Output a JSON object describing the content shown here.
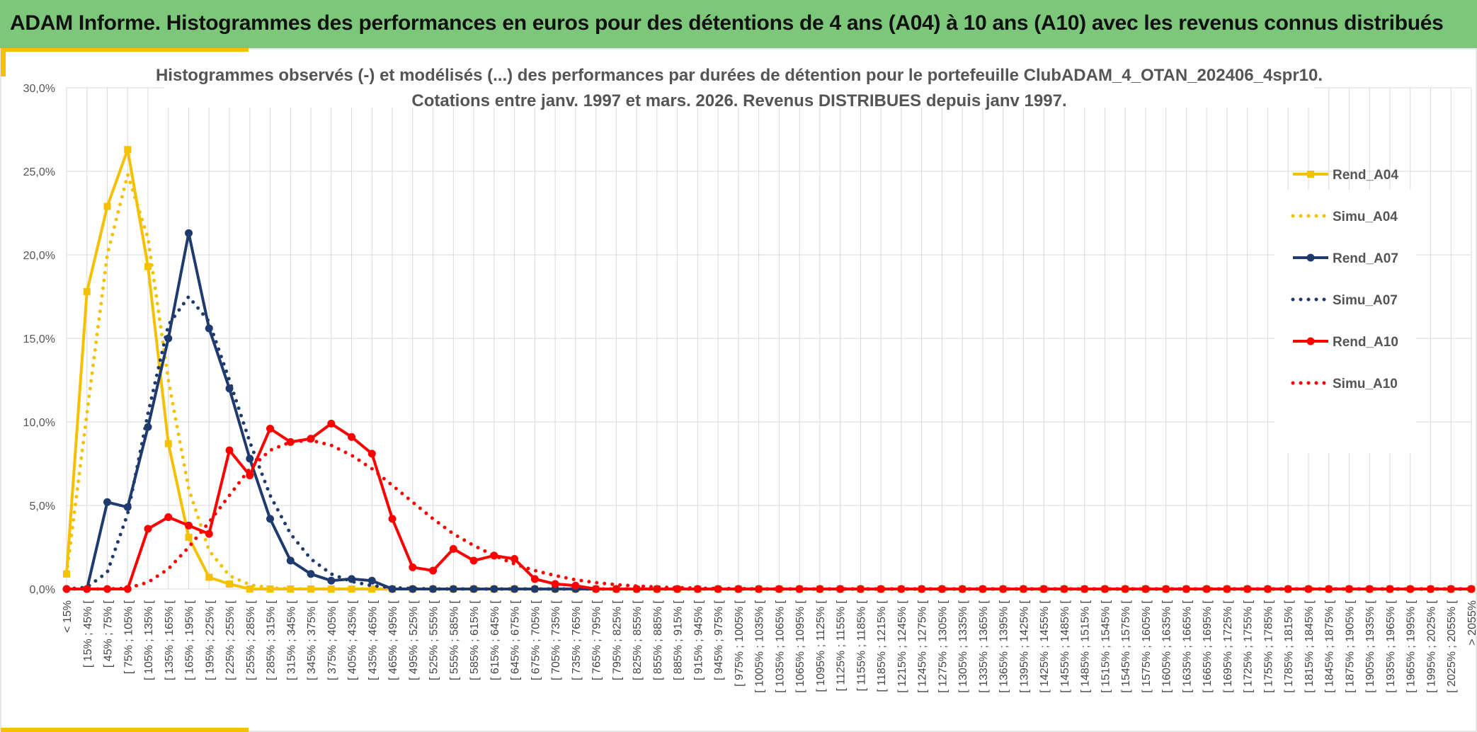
{
  "header": {
    "title": "ADAM Informe. Histogrammes des performances en euros pour des détentions de 4 ans (A04) à 10 ans (A10) avec les revenus connus distribués"
  },
  "chart_data": {
    "type": "line",
    "title_line1": "Histogrammes observés (-) et modélisés (...) des performances par durées de détention pour le portefeuille ClubADAM_4_OTAN_202406_4spr10.",
    "title_line2": "Cotations entre janv. 1997 et mars. 2026. Revenus DISTRIBUES depuis janv 1997.",
    "ylim": [
      0,
      30
    ],
    "yticks": [
      "0,0%",
      "5,0%",
      "10,0%",
      "15,0%",
      "20,0%",
      "25,0%",
      "30,0%"
    ],
    "categories": [
      "< 15%",
      "[ 15% ; 45% [",
      "[ 45% ; 75% [",
      "[ 75% ; 105% [",
      "[ 105% ; 135% [",
      "[ 135% ; 165% [",
      "[ 165% ; 195% [",
      "[ 195% ; 225% [",
      "[ 225% ; 255% [",
      "[ 255% ; 285% [",
      "[ 285% ; 315% [",
      "[ 315% ; 345% [",
      "[ 345% ; 375% [",
      "[ 375% ; 405% [",
      "[ 405% ; 435% [",
      "[ 435% ; 465% [",
      "[ 465% ; 495% [",
      "[ 495% ; 525% [",
      "[ 525% ; 555% [",
      "[ 555% ; 585% [",
      "[ 585% ; 615% [",
      "[ 615% ; 645% [",
      "[ 645% ; 675% [",
      "[ 675% ; 705% [",
      "[ 705% ; 735% [",
      "[ 735% ; 765% [",
      "[ 765% ; 795% [",
      "[ 795% ; 825% [",
      "[ 825% ; 855% [",
      "[ 855% ; 885% [",
      "[ 885% ; 915% [",
      "[ 915% ; 945% [",
      "[ 945% ; 975% [",
      "[ 975% ; 1005% [",
      "[ 1005% ; 1035% [",
      "[ 1035% ; 1065% [",
      "[ 1065% ; 1095% [",
      "[ 1095% ; 1125% [",
      "[ 1125% ; 1155% [",
      "[ 1155% ; 1185% [",
      "[ 1185% ; 1215% [",
      "[ 1215% ; 1245% [",
      "[ 1245% ; 1275% [",
      "[ 1275% ; 1305% [",
      "[ 1305% ; 1335% [",
      "[ 1335% ; 1365% [",
      "[ 1365% ; 1395% [",
      "[ 1395% ; 1425% [",
      "[ 1425% ; 1455% [",
      "[ 1455% ; 1485% [",
      "[ 1485% ; 1515% [",
      "[ 1515% ; 1545% [",
      "[ 1545% ; 1575% [",
      "[ 1575% ; 1605% [",
      "[ 1605% ; 1635% [",
      "[ 1635% ; 1665% [",
      "[ 1665% ; 1695% [",
      "[ 1695% ; 1725% [",
      "[ 1725% ; 1755% [",
      "[ 1755% ; 1785% [",
      "[ 1785% ; 1815% [",
      "[ 1815% ; 1845% [",
      "[ 1845% ; 1875% [",
      "[ 1875% ; 1905% [",
      "[ 1905% ; 1935% [",
      "[ 1935% ; 1965% [",
      "[ 1965% ; 1995% [",
      "[ 1995% ; 2025% [",
      "[ 2025% ; 2055% [",
      "> 2055%"
    ],
    "series": [
      {
        "name": "Rend_A04",
        "style": "solid",
        "marker": "square",
        "color": "#f5c000",
        "values": [
          0.9,
          17.8,
          22.9,
          26.3,
          19.3,
          8.7,
          3.1,
          0.7,
          0.3,
          0,
          0,
          0,
          0,
          0,
          0,
          0,
          0,
          0,
          0,
          0,
          0,
          0,
          0,
          0,
          0,
          0,
          0,
          0,
          0,
          0,
          0,
          0,
          0,
          0,
          0,
          0,
          0,
          0,
          0,
          0,
          0,
          0,
          0,
          0,
          0,
          0,
          0,
          0,
          0,
          0,
          0,
          0,
          0,
          0,
          0,
          0,
          0,
          0,
          0,
          0,
          0,
          0,
          0,
          0,
          0,
          0,
          0,
          0,
          0,
          0
        ]
      },
      {
        "name": "Simu_A04",
        "style": "dotted",
        "marker": "none",
        "color": "#f5c000",
        "values": [
          0.9,
          10.5,
          20.0,
          24.8,
          21.0,
          12.5,
          6.0,
          2.3,
          0.8,
          0.25,
          0.06,
          0.02,
          0,
          0,
          0,
          0,
          0,
          0,
          0,
          0,
          0,
          0,
          0,
          0,
          0,
          0,
          0,
          0,
          0,
          0,
          0,
          0,
          0,
          0,
          0,
          0,
          0,
          0,
          0,
          0,
          0,
          0,
          0,
          0,
          0,
          0,
          0,
          0,
          0,
          0,
          0,
          0,
          0,
          0,
          0,
          0,
          0,
          0,
          0,
          0,
          0,
          0,
          0,
          0,
          0,
          0,
          0,
          0,
          0,
          0
        ]
      },
      {
        "name": "Rend_A07",
        "style": "solid",
        "marker": "circle",
        "color": "#1f3b6e",
        "values": [
          0,
          0,
          5.2,
          4.9,
          9.7,
          15.0,
          21.3,
          15.6,
          12.0,
          7.8,
          4.2,
          1.7,
          0.9,
          0.5,
          0.6,
          0.5,
          0,
          0,
          0,
          0,
          0,
          0,
          0,
          0,
          0,
          0,
          0,
          0,
          0,
          0,
          0,
          0,
          0,
          0,
          0,
          0,
          0,
          0,
          0,
          0,
          0,
          0,
          0,
          0,
          0,
          0,
          0,
          0,
          0,
          0,
          0,
          0,
          0,
          0,
          0,
          0,
          0,
          0,
          0,
          0,
          0,
          0,
          0,
          0,
          0,
          0,
          0,
          0,
          0,
          0
        ]
      },
      {
        "name": "Simu_A07",
        "style": "dotted",
        "marker": "none",
        "color": "#1f3b6e",
        "values": [
          0,
          0.1,
          1.0,
          4.5,
          10.5,
          15.8,
          17.5,
          16.0,
          12.5,
          8.8,
          5.6,
          3.3,
          1.8,
          0.9,
          0.45,
          0.2,
          0.08,
          0.03,
          0,
          0,
          0,
          0,
          0,
          0,
          0,
          0,
          0,
          0,
          0,
          0,
          0,
          0,
          0,
          0,
          0,
          0,
          0,
          0,
          0,
          0,
          0,
          0,
          0,
          0,
          0,
          0,
          0,
          0,
          0,
          0,
          0,
          0,
          0,
          0,
          0,
          0,
          0,
          0,
          0,
          0,
          0,
          0,
          0,
          0,
          0,
          0,
          0,
          0,
          0,
          0
        ]
      },
      {
        "name": "Rend_A10",
        "style": "solid",
        "marker": "circle",
        "color": "#ff0000",
        "values": [
          0,
          0,
          0,
          0,
          3.6,
          4.3,
          3.8,
          3.3,
          8.3,
          6.8,
          9.6,
          8.8,
          9.0,
          9.9,
          9.1,
          8.1,
          4.2,
          1.3,
          1.1,
          2.4,
          1.7,
          2.0,
          1.8,
          0.6,
          0.3,
          0.2,
          0,
          0,
          0,
          0,
          0,
          0,
          0,
          0,
          0,
          0,
          0,
          0,
          0,
          0,
          0,
          0,
          0,
          0,
          0,
          0,
          0,
          0,
          0,
          0,
          0,
          0,
          0,
          0,
          0,
          0,
          0,
          0,
          0,
          0,
          0,
          0,
          0,
          0,
          0,
          0,
          0,
          0,
          0,
          0
        ]
      },
      {
        "name": "Simu_A10",
        "style": "dotted",
        "marker": "none",
        "color": "#ff0000",
        "values": [
          0,
          0,
          0,
          0.05,
          0.4,
          1.2,
          2.5,
          4.0,
          5.6,
          7.2,
          8.3,
          8.8,
          8.9,
          8.6,
          8.0,
          7.2,
          6.2,
          5.2,
          4.2,
          3.3,
          2.6,
          2.0,
          1.5,
          1.1,
          0.8,
          0.55,
          0.38,
          0.26,
          0.18,
          0.12,
          0.08,
          0.05,
          0.03,
          0.02,
          0,
          0,
          0,
          0,
          0,
          0,
          0,
          0,
          0,
          0,
          0,
          0,
          0,
          0,
          0,
          0,
          0,
          0,
          0,
          0,
          0,
          0,
          0,
          0,
          0,
          0,
          0,
          0,
          0,
          0,
          0,
          0,
          0,
          0,
          0,
          0
        ]
      }
    ],
    "legend_position": "right",
    "grid": true
  }
}
